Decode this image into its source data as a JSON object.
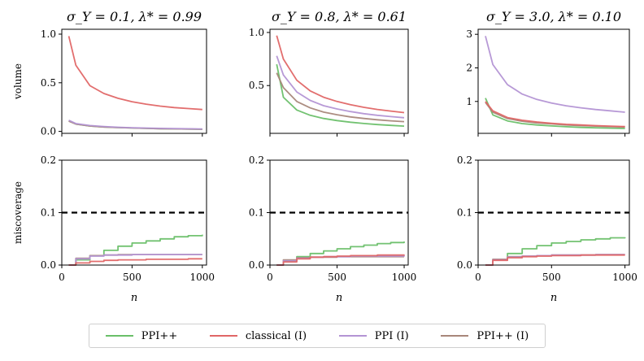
{
  "series_colors": {
    "PPI++": "#6abf69",
    "classical (I)": "#e06666",
    "PPI (I)": "#b394d4",
    "PPI++ (I)": "#a8877a"
  },
  "legend": [
    {
      "label": "PPI++",
      "color": "#6abf69"
    },
    {
      "label": "classical (I)",
      "color": "#e06666"
    },
    {
      "label": "PPI (I)",
      "color": "#b394d4"
    },
    {
      "label": "PPI++ (I)",
      "color": "#a8877a"
    }
  ],
  "chart_data": [
    {
      "type": "line",
      "title": "σ_Y = 0.1, λ* = 0.99",
      "row": "volume",
      "xlabel": "",
      "ylabel": "volume",
      "xlim": [
        0,
        1030
      ],
      "ylim": [
        -0.02,
        1.05
      ],
      "yticks": [
        "0.0",
        "0.5",
        "1.0"
      ],
      "ytick_values": [
        0,
        0.5,
        1.0
      ],
      "xticks": [],
      "xtick_values": [
        0,
        500,
        1000
      ],
      "reference_line": null,
      "series": [
        {
          "name": "classical (I)",
          "x": [
            50,
            100,
            200,
            300,
            400,
            500,
            600,
            700,
            800,
            900,
            1000
          ],
          "y": [
            0.98,
            0.68,
            0.47,
            0.39,
            0.34,
            0.305,
            0.28,
            0.26,
            0.245,
            0.235,
            0.225
          ]
        },
        {
          "name": "PPI (I)",
          "x": [
            50,
            100,
            200,
            300,
            400,
            500,
            600,
            700,
            800,
            900,
            1000
          ],
          "y": [
            0.115,
            0.08,
            0.06,
            0.05,
            0.043,
            0.038,
            0.034,
            0.031,
            0.029,
            0.027,
            0.025
          ]
        },
        {
          "name": "PPI++",
          "x": [
            50,
            100,
            200,
            300,
            400,
            500,
            600,
            700,
            800,
            900,
            1000
          ],
          "y": [
            0.11,
            0.075,
            0.055,
            0.045,
            0.039,
            0.035,
            0.031,
            0.028,
            0.026,
            0.024,
            0.022
          ]
        },
        {
          "name": "PPI++ (I)",
          "x": [
            50,
            100,
            200,
            300,
            400,
            500,
            600,
            700,
            800,
            900,
            1000
          ],
          "y": [
            0.105,
            0.075,
            0.055,
            0.045,
            0.039,
            0.035,
            0.031,
            0.028,
            0.026,
            0.024,
            0.022
          ]
        }
      ]
    },
    {
      "type": "line",
      "title": "σ_Y = 0.8, λ* = 0.61",
      "row": "volume",
      "xlabel": "",
      "ylabel": "",
      "xlim": [
        0,
        1030
      ],
      "ylim": [
        0.05,
        1.03
      ],
      "yticks": [
        "0.5",
        "1.0"
      ],
      "ytick_values": [
        0.5,
        1.0
      ],
      "xticks": [],
      "xtick_values": [
        0,
        500,
        1000
      ],
      "reference_line": null,
      "series": [
        {
          "name": "classical (I)",
          "x": [
            50,
            100,
            200,
            300,
            400,
            500,
            600,
            700,
            800,
            900,
            1000
          ],
          "y": [
            0.97,
            0.75,
            0.55,
            0.45,
            0.39,
            0.35,
            0.32,
            0.295,
            0.275,
            0.26,
            0.245
          ]
        },
        {
          "name": "PPI (I)",
          "x": [
            50,
            100,
            200,
            300,
            400,
            500,
            600,
            700,
            800,
            900,
            1000
          ],
          "y": [
            0.78,
            0.6,
            0.44,
            0.36,
            0.31,
            0.28,
            0.255,
            0.235,
            0.22,
            0.208,
            0.197
          ]
        },
        {
          "name": "PPI++ (I)",
          "x": [
            50,
            100,
            200,
            300,
            400,
            500,
            600,
            700,
            800,
            900,
            1000
          ],
          "y": [
            0.62,
            0.48,
            0.35,
            0.29,
            0.25,
            0.225,
            0.205,
            0.19,
            0.178,
            0.168,
            0.16
          ]
        },
        {
          "name": "PPI++",
          "x": [
            50,
            100,
            200,
            300,
            400,
            500,
            600,
            700,
            800,
            900,
            1000
          ],
          "y": [
            0.7,
            0.39,
            0.27,
            0.22,
            0.19,
            0.17,
            0.155,
            0.143,
            0.133,
            0.125,
            0.118
          ]
        }
      ]
    },
    {
      "type": "line",
      "title": "σ_Y = 3.0, λ* = 0.10",
      "row": "volume",
      "xlabel": "",
      "ylabel": "",
      "xlim": [
        0,
        1030
      ],
      "ylim": [
        0.05,
        3.15
      ],
      "yticks": [
        "1",
        "2",
        "3"
      ],
      "ytick_values": [
        1,
        2,
        3
      ],
      "xticks": [],
      "xtick_values": [
        0,
        500,
        1000
      ],
      "reference_line": null,
      "series": [
        {
          "name": "PPI (I)",
          "x": [
            50,
            100,
            200,
            300,
            400,
            500,
            600,
            700,
            800,
            900,
            1000
          ],
          "y": [
            2.95,
            2.1,
            1.5,
            1.22,
            1.06,
            0.95,
            0.87,
            0.81,
            0.76,
            0.72,
            0.68
          ]
        },
        {
          "name": "classical (I)",
          "x": [
            50,
            100,
            200,
            300,
            400,
            500,
            600,
            700,
            800,
            900,
            1000
          ],
          "y": [
            1.0,
            0.72,
            0.52,
            0.44,
            0.39,
            0.35,
            0.32,
            0.3,
            0.28,
            0.265,
            0.25
          ]
        },
        {
          "name": "PPI++ (I)",
          "x": [
            50,
            100,
            200,
            300,
            400,
            500,
            600,
            700,
            800,
            900,
            1000
          ],
          "y": [
            0.97,
            0.68,
            0.49,
            0.41,
            0.36,
            0.33,
            0.3,
            0.28,
            0.265,
            0.25,
            0.24
          ]
        },
        {
          "name": "PPI++",
          "x": [
            50,
            100,
            200,
            300,
            400,
            500,
            600,
            700,
            800,
            900,
            1000
          ],
          "y": [
            1.1,
            0.6,
            0.42,
            0.34,
            0.3,
            0.27,
            0.245,
            0.228,
            0.215,
            0.205,
            0.195
          ]
        }
      ]
    },
    {
      "type": "line",
      "title": "",
      "row": "miscoverage",
      "xlabel": "n",
      "ylabel": "miscoverage",
      "xlim": [
        0,
        1030
      ],
      "ylim": [
        0,
        0.2
      ],
      "yticks": [
        "0.0",
        "0.1",
        "0.2"
      ],
      "ytick_values": [
        0,
        0.1,
        0.2
      ],
      "xticks": [
        "0",
        "500",
        "1000"
      ],
      "xtick_values": [
        0,
        500,
        1000
      ],
      "reference_line": 0.1,
      "series": [
        {
          "name": "classical (I)",
          "x": [
            50,
            100,
            200,
            300,
            400,
            500,
            600,
            700,
            800,
            900,
            1000
          ],
          "y": [
            0.0,
            0.004,
            0.007,
            0.009,
            0.01,
            0.01,
            0.011,
            0.011,
            0.011,
            0.012,
            0.012
          ]
        },
        {
          "name": "PPI (I)",
          "x": [
            50,
            100,
            200,
            300,
            400,
            500,
            600,
            700,
            800,
            900,
            1000
          ],
          "y": [
            0.0,
            0.012,
            0.017,
            0.019,
            0.019,
            0.02,
            0.02,
            0.02,
            0.02,
            0.02,
            0.02
          ]
        },
        {
          "name": "PPI++ (I)",
          "x": [
            50,
            100,
            200,
            300,
            400,
            500,
            600,
            700,
            800,
            900,
            1000
          ],
          "y": [
            0.0,
            0.013,
            0.018,
            0.019,
            0.02,
            0.02,
            0.02,
            0.02,
            0.02,
            0.02,
            0.02
          ]
        },
        {
          "name": "PPI++",
          "x": [
            50,
            100,
            200,
            300,
            400,
            500,
            600,
            700,
            800,
            900,
            1000
          ],
          "y": [
            0.0,
            0.01,
            0.018,
            0.028,
            0.036,
            0.042,
            0.046,
            0.05,
            0.054,
            0.056,
            0.058
          ]
        }
      ]
    },
    {
      "type": "line",
      "title": "",
      "row": "miscoverage",
      "xlabel": "n",
      "ylabel": "",
      "xlim": [
        0,
        1030
      ],
      "ylim": [
        0,
        0.2
      ],
      "yticks": [
        "0.0",
        "0.1",
        "0.2"
      ],
      "ytick_values": [
        0,
        0.1,
        0.2
      ],
      "xticks": [
        "0",
        "500",
        "1000"
      ],
      "xtick_values": [
        0,
        500,
        1000
      ],
      "reference_line": 0.1,
      "series": [
        {
          "name": "classical (I)",
          "x": [
            50,
            100,
            200,
            300,
            400,
            500,
            600,
            700,
            800,
            900,
            1000
          ],
          "y": [
            0.0,
            0.006,
            0.012,
            0.015,
            0.016,
            0.017,
            0.018,
            0.018,
            0.019,
            0.019,
            0.02
          ]
        },
        {
          "name": "PPI (I)",
          "x": [
            50,
            100,
            200,
            300,
            400,
            500,
            600,
            700,
            800,
            900,
            1000
          ],
          "y": [
            0.0,
            0.008,
            0.013,
            0.015,
            0.016,
            0.016,
            0.017,
            0.017,
            0.017,
            0.017,
            0.018
          ]
        },
        {
          "name": "PPI++ (I)",
          "x": [
            50,
            100,
            200,
            300,
            400,
            500,
            600,
            700,
            800,
            900,
            1000
          ],
          "y": [
            0.0,
            0.01,
            0.014,
            0.015,
            0.015,
            0.016,
            0.016,
            0.016,
            0.016,
            0.016,
            0.016
          ]
        },
        {
          "name": "PPI++",
          "x": [
            50,
            100,
            200,
            300,
            400,
            500,
            600,
            700,
            800,
            900,
            1000
          ],
          "y": [
            0.0,
            0.008,
            0.016,
            0.022,
            0.027,
            0.031,
            0.035,
            0.038,
            0.041,
            0.043,
            0.045
          ]
        }
      ]
    },
    {
      "type": "line",
      "title": "",
      "row": "miscoverage",
      "xlabel": "n",
      "ylabel": "",
      "xlim": [
        0,
        1030
      ],
      "ylim": [
        0,
        0.2
      ],
      "yticks": [
        "0.0",
        "0.1",
        "0.2"
      ],
      "ytick_values": [
        0,
        0.1,
        0.2
      ],
      "xticks": [
        "0",
        "500",
        "1000"
      ],
      "xtick_values": [
        0,
        500,
        1000
      ],
      "reference_line": 0.1,
      "series": [
        {
          "name": "classical (I)",
          "x": [
            50,
            100,
            200,
            300,
            400,
            500,
            600,
            700,
            800,
            900,
            1000
          ],
          "y": [
            0.0,
            0.009,
            0.014,
            0.016,
            0.017,
            0.018,
            0.018,
            0.019,
            0.019,
            0.019,
            0.019
          ]
        },
        {
          "name": "PPI (I)",
          "x": [
            50,
            100,
            200,
            300,
            400,
            500,
            600,
            700,
            800,
            900,
            1000
          ],
          "y": [
            0.0,
            0.01,
            0.015,
            0.017,
            0.018,
            0.019,
            0.019,
            0.019,
            0.02,
            0.02,
            0.02
          ]
        },
        {
          "name": "PPI++ (I)",
          "x": [
            50,
            100,
            200,
            300,
            400,
            500,
            600,
            700,
            800,
            900,
            1000
          ],
          "y": [
            0.0,
            0.011,
            0.016,
            0.017,
            0.018,
            0.019,
            0.019,
            0.019,
            0.02,
            0.02,
            0.02
          ]
        },
        {
          "name": "PPI++",
          "x": [
            50,
            100,
            200,
            300,
            400,
            500,
            600,
            700,
            800,
            900,
            1000
          ],
          "y": [
            0.0,
            0.01,
            0.022,
            0.031,
            0.037,
            0.042,
            0.045,
            0.048,
            0.05,
            0.052,
            0.053
          ]
        }
      ]
    }
  ]
}
